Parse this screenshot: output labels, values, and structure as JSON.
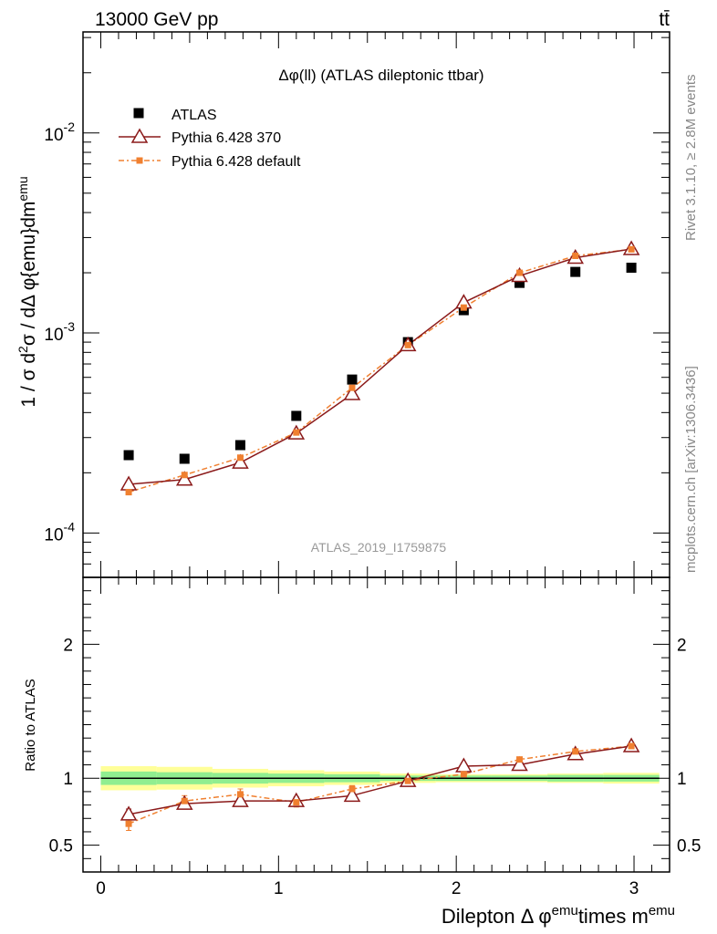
{
  "header": {
    "left": "13000 GeV pp",
    "right": "tt̄"
  },
  "side_text": {
    "rivet": "Rivet 3.1.10, ≥ 2.8M events",
    "url": "mcplots.cern.ch [arXiv:1306.3436]"
  },
  "colors": {
    "atlas": "#000000",
    "pythia370": "#8b1a1a",
    "pythia_default": "#f08030",
    "band_inner": "#90ee90",
    "band_outer": "#ffff99"
  },
  "chart_data": [
    {
      "type": "scatter",
      "title": "Δφ(ll) (ATLAS dileptonic ttbar)",
      "watermark": "ATLAS_2019_I1759875",
      "ylabel": "1 / σ  d²σ / dΔ φ{emu}dm^emu",
      "yscale": "log",
      "ylim": [
        6e-05,
        0.032
      ],
      "xlim": [
        -0.1,
        3.2
      ],
      "yticks": [
        {
          "value": 0.0001,
          "label": "10^-4"
        },
        {
          "value": 0.001,
          "label": "10^-3"
        },
        {
          "value": 0.01,
          "label": "10^-2"
        }
      ],
      "legend_position": "top-left",
      "x": [
        0.157,
        0.471,
        0.785,
        1.1,
        1.414,
        1.728,
        2.042,
        2.356,
        2.67,
        2.985
      ],
      "series": [
        {
          "name": "ATLAS",
          "marker": "square",
          "values": [
            0.000245,
            0.000235,
            0.000275,
            0.000385,
            0.000585,
            0.0009,
            0.0013,
            0.00178,
            0.00202,
            0.00212
          ]
        },
        {
          "name": "Pythia 6.428 370",
          "marker": "triangle",
          "values": [
            0.000175,
            0.000185,
            0.000225,
            0.000315,
            0.000495,
            0.00087,
            0.00142,
            0.00193,
            0.00238,
            0.00263
          ]
        },
        {
          "name": "Pythia 6.428 default",
          "marker": "small-square",
          "values": [
            0.00016,
            0.000195,
            0.000238,
            0.000318,
            0.000532,
            0.00087,
            0.00134,
            0.002,
            0.00243,
            0.00262
          ]
        }
      ]
    },
    {
      "type": "line",
      "ylabel": "Ratio to ATLAS",
      "xlabel": "Dilepton Δ φ^emu times m^emu",
      "ylim": [
        0.3,
        2.5
      ],
      "xlim": [
        -0.1,
        3.2
      ],
      "xticks": [
        0,
        1,
        2,
        3
      ],
      "yticks": [
        0.5,
        1,
        2
      ],
      "x": [
        0.157,
        0.471,
        0.785,
        1.1,
        1.414,
        1.728,
        2.042,
        2.356,
        2.67,
        2.985
      ],
      "band_edges": [
        0.0,
        0.314,
        0.628,
        0.942,
        1.257,
        1.571,
        1.885,
        2.199,
        2.513,
        2.827,
        3.142
      ],
      "band_inner": [
        0.05,
        0.045,
        0.04,
        0.035,
        0.03,
        0.02,
        0.02,
        0.02,
        0.025,
        0.025
      ],
      "band_outer": [
        0.09,
        0.085,
        0.07,
        0.06,
        0.05,
        0.035,
        0.03,
        0.03,
        0.035,
        0.04
      ],
      "series": [
        {
          "name": "Pythia 6.428 370",
          "values": [
            0.73,
            0.81,
            0.83,
            0.83,
            0.87,
            0.98,
            1.09,
            1.1,
            1.18,
            1.24
          ],
          "errors": [
            0.04,
            0.035,
            0.03,
            0.03,
            0.02,
            0.015,
            0.01,
            0.01,
            0.01,
            0.01
          ]
        },
        {
          "name": "Pythia 6.428 default",
          "values": [
            0.66,
            0.83,
            0.88,
            0.82,
            0.92,
            0.98,
            1.03,
            1.14,
            1.2,
            1.24
          ],
          "errors": [
            0.05,
            0.04,
            0.04,
            0.035,
            0.025,
            0.015,
            0.01,
            0.01,
            0.01,
            0.01
          ]
        }
      ]
    }
  ]
}
